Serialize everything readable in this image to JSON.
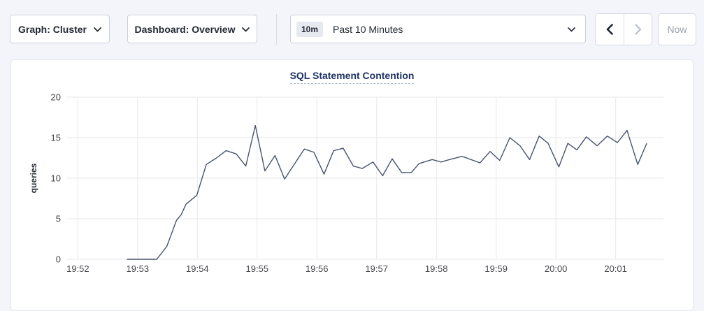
{
  "toolbar": {
    "graph_dropdown": {
      "label": "Graph: Cluster",
      "icon": "chevron-down"
    },
    "dashboard_dropdown": {
      "label": "Dashboard: Overview",
      "icon": "chevron-down"
    },
    "time_range": {
      "badge": "10m",
      "label": "Past 10 Minutes",
      "icon": "chevron-down"
    },
    "prev_icon": "chevron-left",
    "next_icon": "chevron-right",
    "now_label": "Now"
  },
  "chart_data": {
    "type": "line",
    "title": "SQL Statement Contention",
    "ylabel": "queries",
    "ylim": [
      0,
      20
    ],
    "yticks": [
      0,
      5,
      10,
      15,
      20
    ],
    "xtick_labels": [
      "19:52",
      "19:53",
      "19:54",
      "19:55",
      "19:56",
      "19:57",
      "19:58",
      "19:59",
      "20:00",
      "20:01"
    ],
    "x_domain_minutes_after_1952": [
      -0.18,
      9.8
    ],
    "grid": true,
    "legend": "none",
    "colors": {
      "line": "#47536e",
      "grid": "#ececf1",
      "tick_text": "#47474d",
      "axis_label_text": "#242a35"
    },
    "series": [
      {
        "name": "SQL Statement Contention",
        "points_minutes_vs_queries": [
          [
            0.82,
            0
          ],
          [
            1.32,
            0
          ],
          [
            1.49,
            1.6
          ],
          [
            1.65,
            4.8
          ],
          [
            1.73,
            5.5
          ],
          [
            1.81,
            6.8
          ],
          [
            1.99,
            7.9
          ],
          [
            2.15,
            11.7
          ],
          [
            2.32,
            12.5
          ],
          [
            2.48,
            13.4
          ],
          [
            2.65,
            13.0
          ],
          [
            2.81,
            11.5
          ],
          [
            2.97,
            16.5
          ],
          [
            3.13,
            10.9
          ],
          [
            3.3,
            12.8
          ],
          [
            3.46,
            9.9
          ],
          [
            3.79,
            13.6
          ],
          [
            3.95,
            13.2
          ],
          [
            4.12,
            10.5
          ],
          [
            4.28,
            13.4
          ],
          [
            4.44,
            13.7
          ],
          [
            4.61,
            11.5
          ],
          [
            4.76,
            11.2
          ],
          [
            4.94,
            12.0
          ],
          [
            5.1,
            10.3
          ],
          [
            5.26,
            12.4
          ],
          [
            5.42,
            10.7
          ],
          [
            5.58,
            10.7
          ],
          [
            5.71,
            11.8
          ],
          [
            5.93,
            12.3
          ],
          [
            6.08,
            12.0
          ],
          [
            6.22,
            12.3
          ],
          [
            6.43,
            12.7
          ],
          [
            6.73,
            11.9
          ],
          [
            6.9,
            13.3
          ],
          [
            7.06,
            12.2
          ],
          [
            7.23,
            15.0
          ],
          [
            7.4,
            14.0
          ],
          [
            7.56,
            12.3
          ],
          [
            7.72,
            15.2
          ],
          [
            7.87,
            14.3
          ],
          [
            8.05,
            11.4
          ],
          [
            8.2,
            14.3
          ],
          [
            8.35,
            13.5
          ],
          [
            8.51,
            15.1
          ],
          [
            8.69,
            14.0
          ],
          [
            8.86,
            15.2
          ],
          [
            9.03,
            14.4
          ],
          [
            9.19,
            15.9
          ],
          [
            9.37,
            11.7
          ],
          [
            9.52,
            14.3
          ]
        ]
      }
    ]
  }
}
